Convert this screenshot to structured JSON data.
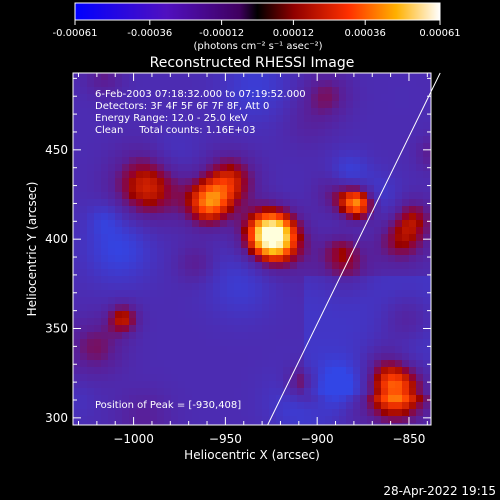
{
  "colorbar": {
    "ticks": [
      "-0.00061",
      "-0.00036",
      "-0.00012",
      "0.00012",
      "0.00036",
      "0.00061"
    ],
    "unit_label": "(photons cm⁻² s⁻¹ asec⁻²)",
    "range": [
      -0.00061,
      0.00061
    ]
  },
  "chart_data": {
    "type": "heatmap",
    "title": "Reconstructed RHESSI Image",
    "xlabel": "Heliocentric X (arcsec)",
    "ylabel": "Heliocentric Y (arcsec)",
    "xlim": [
      -1033,
      -838
    ],
    "ylim": [
      296,
      493
    ],
    "xticks": [
      -1000,
      -950,
      -900,
      -850
    ],
    "yticks": [
      300,
      350,
      400,
      450
    ],
    "xtick_labels": [
      "−1000",
      "−950",
      "−900",
      "−850"
    ],
    "ytick_labels": [
      "300",
      "350",
      "400",
      "450"
    ],
    "annotations": [
      "6-Feb-2003 07:18:32.000 to 07:19:52.000",
      "Detectors: 3F 4F 5F 6F 7F 8F, Att 0",
      "Energy Range: 12.0 - 25.0 keV",
      "Clean     Total counts: 1.16E+03"
    ],
    "peak_label": "Position of Peak = [-930,408]",
    "peak": [
      -930,
      408
    ],
    "limb": [
      [
        -927,
        296
      ],
      [
        -833,
        493
      ]
    ]
  },
  "footer": {
    "timestamp": "28-Apr-2022 19:15"
  }
}
